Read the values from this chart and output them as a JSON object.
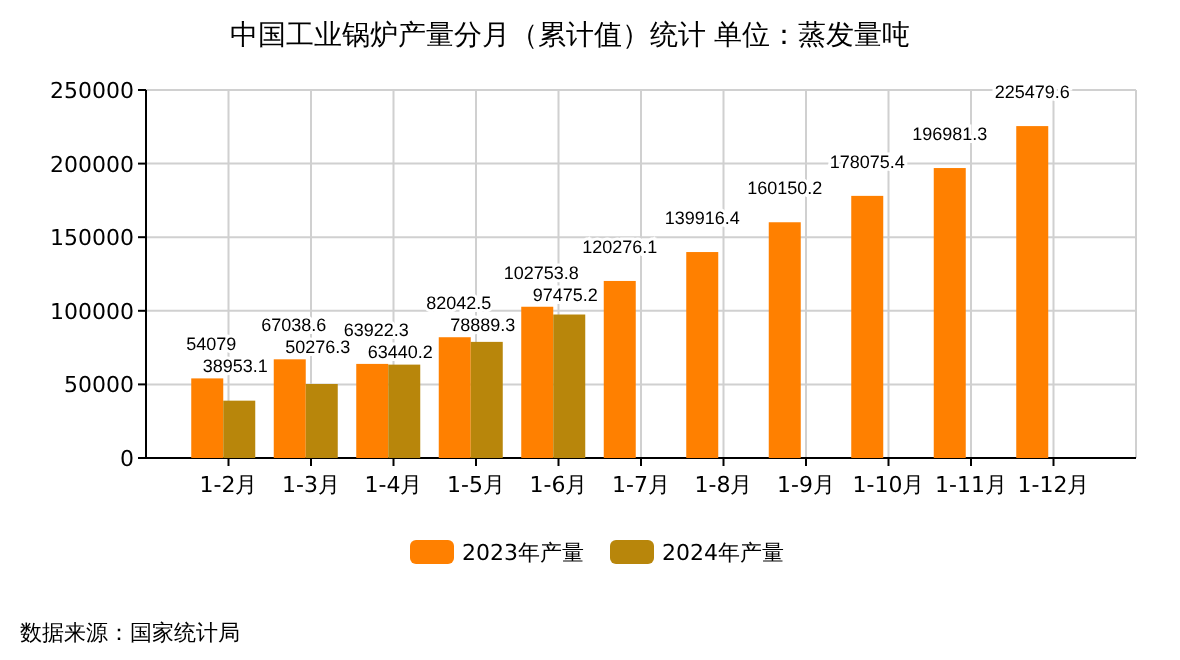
{
  "chart_data": {
    "type": "bar",
    "title": "中国工业锅炉产量分月（累计值）统计 单位：蒸发量吨",
    "categories": [
      "1-2月",
      "1-3月",
      "1-4月",
      "1-5月",
      "1-6月",
      "1-7月",
      "1-8月",
      "1-9月",
      "1-10月",
      "1-11月",
      "1-12月"
    ],
    "series": [
      {
        "name": "2023年产量",
        "color": "#ff8000",
        "values": [
          54079,
          67038.6,
          63922.3,
          82042.5,
          102753.8,
          120276.1,
          139916.4,
          160150.2,
          178075.4,
          196981.3,
          225479.6
        ]
      },
      {
        "name": "2024年产量",
        "color": "#b8860b",
        "values": [
          38953.1,
          50276.3,
          63440.2,
          78889.3,
          97475.2,
          null,
          null,
          null,
          null,
          null,
          null
        ]
      }
    ],
    "ylim": [
      0,
      250000
    ],
    "yticks": [
      0,
      50000,
      100000,
      150000,
      200000,
      250000
    ],
    "grid": true,
    "legend": "bottom",
    "data_labels": true,
    "annotations": [
      "数据来源：国家统计局"
    ]
  }
}
